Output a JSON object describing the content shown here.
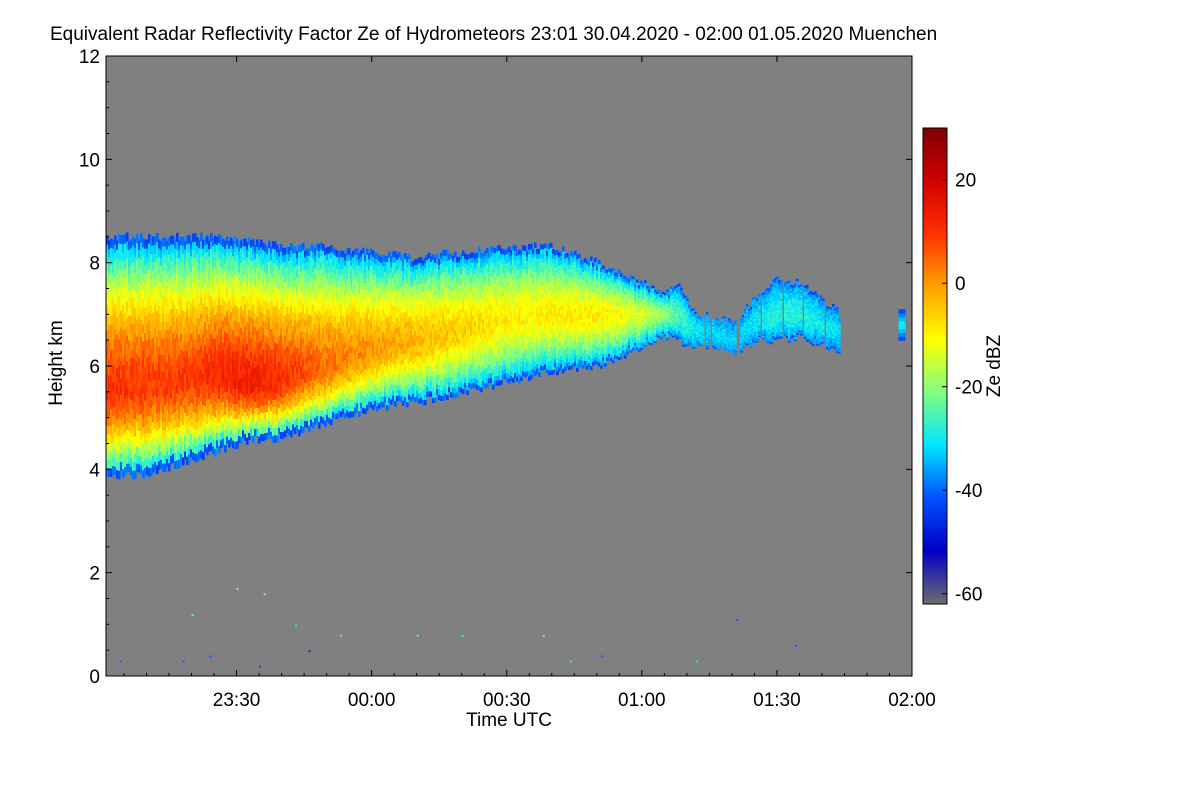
{
  "chart_data": {
    "type": "heatmap",
    "title": "Equivalent Radar Reflectivity Factor Ze of Hydrometeors   23:01 30.04.2020 - 02:00 01.05.2020 Muenchen",
    "xlabel": "Time UTC",
    "ylabel": "Height km",
    "x_range_minutes": [
      -59,
      120
    ],
    "x_ticks": [
      {
        "minutes": -30,
        "label": "23:30"
      },
      {
        "minutes": 0,
        "label": "00:00"
      },
      {
        "minutes": 30,
        "label": "00:30"
      },
      {
        "minutes": 60,
        "label": "01:00"
      },
      {
        "minutes": 90,
        "label": "01:30"
      },
      {
        "minutes": 120,
        "label": "02:00"
      }
    ],
    "ylim": [
      0,
      12
    ],
    "y_ticks": [
      0,
      2,
      4,
      6,
      8,
      10,
      12
    ],
    "background_color": "#808080",
    "colorbar": {
      "label": "Ze dBZ",
      "range": [
        -62,
        30
      ],
      "ticks": [
        20,
        0,
        -20,
        -40,
        -60
      ],
      "colors": [
        "#6e6e6e",
        "#0000c8",
        "#0050ff",
        "#00e6ff",
        "#80ff80",
        "#ffff00",
        "#ffa000",
        "#ff3000",
        "#d00000",
        "#800000"
      ]
    },
    "cloud_profile": [
      {
        "minutes": -59,
        "top_km": 8.5,
        "base_km": 3.9,
        "core_km": 5.5,
        "max_dbz": 10
      },
      {
        "minutes": -50,
        "top_km": 8.5,
        "base_km": 3.9,
        "core_km": 5.6,
        "max_dbz": 9
      },
      {
        "minutes": -40,
        "top_km": 8.5,
        "base_km": 4.2,
        "core_km": 5.7,
        "max_dbz": 9
      },
      {
        "minutes": -33,
        "top_km": 8.5,
        "base_km": 4.4,
        "core_km": 5.8,
        "max_dbz": 12
      },
      {
        "minutes": -27,
        "top_km": 8.4,
        "base_km": 4.6,
        "core_km": 5.6,
        "max_dbz": 13
      },
      {
        "minutes": -20,
        "top_km": 8.3,
        "base_km": 4.6,
        "core_km": 5.7,
        "max_dbz": 10
      },
      {
        "minutes": -10,
        "top_km": 8.3,
        "base_km": 4.9,
        "core_km": 6.0,
        "max_dbz": 4
      },
      {
        "minutes": 0,
        "top_km": 8.2,
        "base_km": 5.2,
        "core_km": 6.3,
        "max_dbz": 0
      },
      {
        "minutes": 10,
        "top_km": 8.1,
        "base_km": 5.3,
        "core_km": 6.5,
        "max_dbz": -3
      },
      {
        "minutes": 20,
        "top_km": 8.2,
        "base_km": 5.5,
        "core_km": 6.7,
        "max_dbz": -6
      },
      {
        "minutes": 30,
        "top_km": 8.3,
        "base_km": 5.7,
        "core_km": 6.9,
        "max_dbz": -9
      },
      {
        "minutes": 40,
        "top_km": 8.3,
        "base_km": 5.9,
        "core_km": 7.0,
        "max_dbz": -9
      },
      {
        "minutes": 50,
        "top_km": 8.0,
        "base_km": 6.0,
        "core_km": 7.0,
        "max_dbz": -9
      },
      {
        "minutes": 55,
        "top_km": 7.8,
        "base_km": 6.2,
        "core_km": 7.0,
        "max_dbz": -11
      },
      {
        "minutes": 60,
        "top_km": 7.6,
        "base_km": 6.4,
        "core_km": 7.0,
        "max_dbz": -14
      },
      {
        "minutes": 65,
        "top_km": 7.4,
        "base_km": 6.6,
        "core_km": 7.0,
        "max_dbz": -20
      },
      {
        "minutes": 68,
        "top_km": 7.6,
        "base_km": 6.5,
        "core_km": 7.0,
        "max_dbz": -25
      },
      {
        "minutes": 72,
        "top_km": 6.9,
        "base_km": 6.4,
        "core_km": 6.7,
        "max_dbz": -30
      },
      {
        "minutes": 75,
        "top_km": 7.0,
        "base_km": 6.4,
        "core_km": 6.7,
        "max_dbz": -32
      },
      {
        "minutes": 80,
        "top_km": 6.8,
        "base_km": 6.3,
        "core_km": 6.5,
        "max_dbz": -32
      },
      {
        "minutes": 86,
        "top_km": 7.4,
        "base_km": 6.5,
        "core_km": 6.9,
        "max_dbz": -30
      },
      {
        "minutes": 90,
        "top_km": 7.7,
        "base_km": 6.5,
        "core_km": 7.0,
        "max_dbz": -28
      },
      {
        "minutes": 95,
        "top_km": 7.6,
        "base_km": 6.6,
        "core_km": 7.0,
        "max_dbz": -28
      },
      {
        "minutes": 100,
        "top_km": 7.3,
        "base_km": 6.4,
        "core_km": 6.8,
        "max_dbz": -30
      },
      {
        "minutes": 104,
        "top_km": 7.0,
        "base_km": 6.3,
        "core_km": 6.7,
        "max_dbz": -32
      }
    ],
    "isolated_echoes": [
      {
        "minutes": 117,
        "top_km": 7.1,
        "base_km": 6.5,
        "max_dbz": -28
      }
    ]
  }
}
